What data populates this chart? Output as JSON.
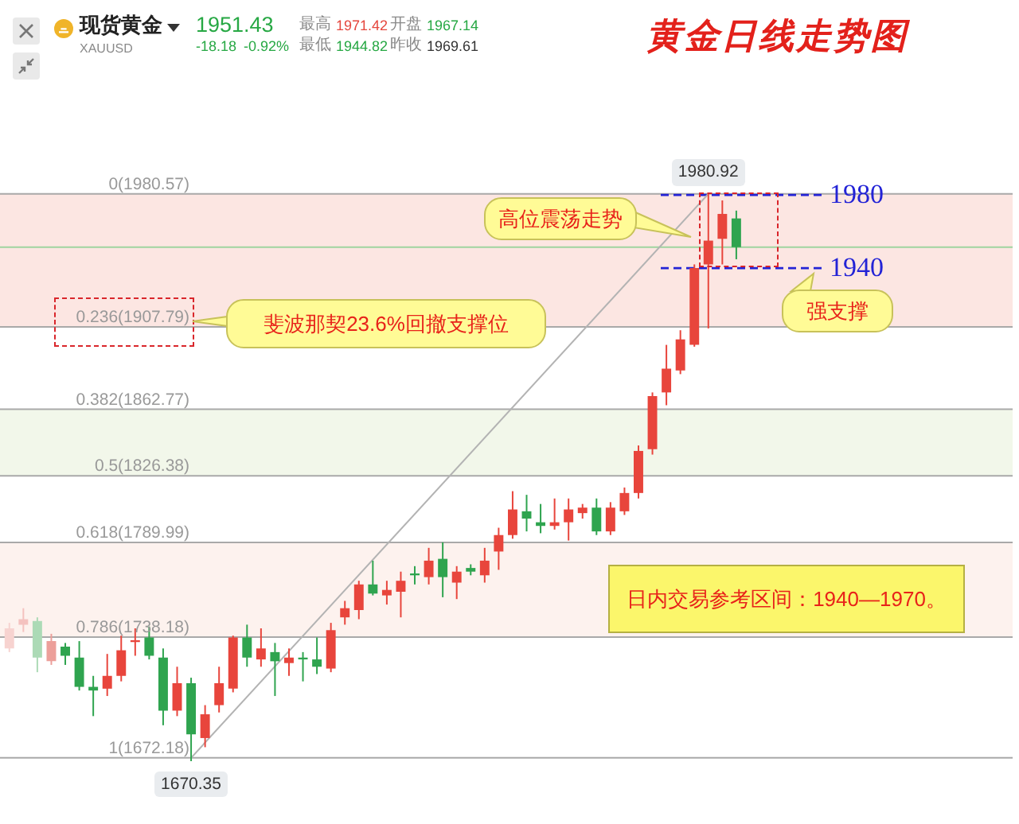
{
  "chart_data": {
    "type": "candlestick",
    "title": "黄金日线走势图",
    "categories": [
      null,
      null,
      null,
      null,
      null,
      null,
      null,
      null,
      null,
      null,
      null,
      null,
      null,
      null,
      null,
      null,
      null,
      null,
      null,
      null,
      null,
      null,
      null,
      null,
      null,
      null,
      null,
      null,
      null,
      null,
      null,
      null,
      null,
      null,
      null,
      null,
      null,
      null,
      null,
      null,
      null,
      null,
      null,
      null,
      null,
      null,
      null,
      null,
      null,
      null,
      null,
      null,
      null
    ],
    "ohlc": [
      [
        1732,
        1746,
        1730,
        1743
      ],
      [
        1745,
        1754,
        1741,
        1748
      ],
      [
        1747,
        1749,
        1719,
        1727
      ],
      [
        1725,
        1740,
        1723,
        1736
      ],
      [
        1733,
        1735,
        1723,
        1728
      ],
      [
        1727,
        1736,
        1709,
        1711
      ],
      [
        1711,
        1717,
        1695,
        1709
      ],
      [
        1710,
        1729,
        1706,
        1717
      ],
      [
        1717,
        1739,
        1714,
        1731
      ],
      [
        1735.5,
        1743,
        1728,
        1736.5
      ],
      [
        1738,
        1744,
        1726,
        1728
      ],
      [
        1727,
        1732,
        1690,
        1698
      ],
      [
        1698,
        1722,
        1695,
        1713
      ],
      [
        1713,
        1716,
        1670.35,
        1685
      ],
      [
        1683,
        1701,
        1678,
        1696
      ],
      [
        1701,
        1722,
        1697,
        1713
      ],
      [
        1710,
        1739,
        1708,
        1738
      ],
      [
        1738,
        1745,
        1722,
        1727
      ],
      [
        1726,
        1743,
        1722,
        1732
      ],
      [
        1730,
        1735,
        1706,
        1725
      ],
      [
        1724,
        1732,
        1717,
        1727
      ],
      [
        1727,
        1730,
        1714,
        1726
      ],
      [
        1726,
        1738,
        1718,
        1722
      ],
      [
        1721,
        1746,
        1719,
        1742
      ],
      [
        1749,
        1758,
        1745,
        1754
      ],
      [
        1753,
        1769,
        1748,
        1767
      ],
      [
        1767,
        1780,
        1761,
        1762
      ],
      [
        1761,
        1769,
        1756,
        1764
      ],
      [
        1763,
        1774,
        1749,
        1769
      ],
      [
        1773,
        1777,
        1767,
        1772
      ],
      [
        1771,
        1787,
        1767,
        1780
      ],
      [
        1781,
        1790,
        1760,
        1771
      ],
      [
        1768,
        1777,
        1759,
        1774
      ],
      [
        1776,
        1778,
        1772,
        1774
      ],
      [
        1772,
        1787,
        1768,
        1780
      ],
      [
        1785,
        1798,
        1775,
        1794
      ],
      [
        1794,
        1818,
        1792,
        1808
      ],
      [
        1807,
        1816,
        1796,
        1803
      ],
      [
        1801,
        1811,
        1795,
        1799
      ],
      [
        1799,
        1814,
        1797,
        1801
      ],
      [
        1801,
        1814,
        1791,
        1808
      ],
      [
        1806,
        1811,
        1803,
        1809
      ],
      [
        1809,
        1814,
        1794,
        1796
      ],
      [
        1796,
        1812,
        1794,
        1809
      ],
      [
        1807,
        1820,
        1805,
        1817
      ],
      [
        1817,
        1843,
        1814,
        1840
      ],
      [
        1841,
        1872,
        1838,
        1870
      ],
      [
        1872,
        1898,
        1865,
        1885
      ],
      [
        1884,
        1906,
        1882,
        1901
      ],
      [
        1898,
        1942,
        1897,
        1940
      ],
      [
        1942,
        1980.92,
        1907,
        1955
      ],
      [
        1956,
        1977,
        1942,
        1969.61
      ],
      [
        1967.14,
        1971.42,
        1944.82,
        1951.43
      ]
    ],
    "colors": [
      "#f7d3d0",
      "#f4c2bf",
      "#acdab6",
      "#ec9f9a",
      "#2fa44f",
      "#2fa44f",
      "#2fa44f",
      "#e8453c",
      "#e8453c",
      "#e8453c",
      "#2fa44f",
      "#2fa44f",
      "#e8453c",
      "#2fa44f",
      "#e8453c",
      "#e8453c",
      "#e8453c",
      "#2fa44f",
      "#e8453c",
      "#2fa44f",
      "#e8453c",
      "#2fa44f",
      "#2fa44f",
      "#e8453c",
      "#e8453c",
      "#e8453c",
      "#2fa44f",
      "#e8453c",
      "#e8453c",
      "#2fa44f",
      "#e8453c",
      "#2fa44f",
      "#e8453c",
      "#2fa44f",
      "#e8453c",
      "#e8453c",
      "#e8453c",
      "#2fa44f",
      "#2fa44f",
      "#e8453c",
      "#e8453c",
      "#e8453c",
      "#2fa44f",
      "#e8453c",
      "#e8453c",
      "#e8453c",
      "#e8453c",
      "#e8453c",
      "#e8453c",
      "#e8453c",
      "#e8453c",
      "#e8453c",
      "#2fa44f"
    ],
    "series": [
      {
        "type": "line",
        "color": "#b3b3b3",
        "values": [
          null,
          null,
          null,
          null,
          null,
          null,
          null,
          null,
          null,
          null,
          null,
          null,
          null,
          1672.18,
          null,
          null,
          null,
          null,
          null,
          null,
          null,
          null,
          null,
          null,
          null,
          null,
          null,
          null,
          null,
          null,
          null,
          null,
          null,
          null,
          null,
          null,
          null,
          null,
          null,
          null,
          null,
          null,
          null,
          null,
          null,
          null,
          null,
          null,
          null,
          null,
          1980.57,
          null,
          null
        ]
      }
    ],
    "tick_labels": false,
    "bands": [
      {
        "axis": "y",
        "from": 1907.79,
        "to": 1980.57,
        "color": "#fce6e2"
      },
      {
        "axis": "y",
        "from": 1826.38,
        "to": 1862.77,
        "color": "#f2f7ea"
      },
      {
        "axis": "y",
        "from": 1738.18,
        "to": 1789.99,
        "color": "#fdf2ee"
      }
    ],
    "ref_lines": [
      {
        "axis": "y",
        "value": 1980.57,
        "label": "0(1980.57)",
        "color": "#a9a9a9"
      },
      {
        "axis": "y",
        "value": 1907.79,
        "label": "0.236(1907.79)",
        "color": "#a9a9a9"
      },
      {
        "axis": "y",
        "value": 1862.77,
        "label": "0.382(1862.77)",
        "color": "#a9a9a9"
      },
      {
        "axis": "y",
        "value": 1826.38,
        "label": "0.5(1826.38)",
        "color": "#a9a9a9"
      },
      {
        "axis": "y",
        "value": 1789.99,
        "label": "0.618(1789.99)",
        "color": "#a9a9a9"
      },
      {
        "axis": "y",
        "value": 1738.18,
        "label": "0.786(1738.18)",
        "color": "#a9a9a9"
      },
      {
        "axis": "y",
        "value": 1672.18,
        "label": "1(1672.18)",
        "color": "#a9a9a9"
      },
      {
        "axis": "y",
        "value": 1951.43,
        "color": "#9fd49f"
      },
      {
        "axis": "y",
        "value": 1980,
        "label": "1980",
        "color": "#2323d6",
        "line_style": "dashed"
      },
      {
        "axis": "y",
        "value": 1940,
        "label": "1940",
        "color": "#2323d6",
        "line_style": "dashed"
      }
    ],
    "annotations": [
      "现货黄金",
      "XAUUSD",
      "1951.43",
      "-18.18",
      "-0.92%",
      "最高",
      "1971.42",
      "开盘",
      "1967.14",
      "最低",
      "1944.82",
      "昨收",
      "1969.61",
      "斐波那契23.6%回撤支撑位",
      "高位震荡走势",
      "强支撑",
      "日内交易参考区间：1940—1970。",
      {
        "text": "1980.92",
        "y": 1980.92
      },
      {
        "text": "1670.35",
        "y": 1670.35
      }
    ]
  }
}
